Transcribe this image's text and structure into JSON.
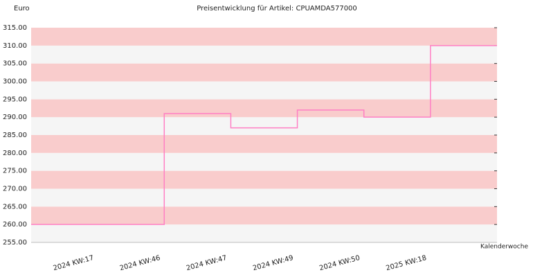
{
  "chart_data": {
    "type": "step",
    "title": "Preisentwicklung für Artikel: CPUAMDA577000",
    "y_label": "Euro",
    "x_label": "Kalenderwoche",
    "categories": [
      "2024 KW:17",
      "2024 KW:46",
      "2024 KW:47",
      "2024 KW:49",
      "2024 KW:50",
      "2025 KW:18"
    ],
    "values": [
      260,
      291,
      287,
      292,
      290,
      310
    ],
    "color": "#ff7fc4",
    "ylim": [
      255,
      315
    ],
    "yticks": [
      {
        "value": 255,
        "label": "255.00"
      },
      {
        "value": 260,
        "label": "260.00"
      },
      {
        "value": 265,
        "label": "265.00"
      },
      {
        "value": 270,
        "label": "270.00"
      },
      {
        "value": 275,
        "label": "275.00"
      },
      {
        "value": 280,
        "label": "280.00"
      },
      {
        "value": 285,
        "label": "285.00"
      },
      {
        "value": 290,
        "label": "290.00"
      },
      {
        "value": 295,
        "label": "295.00"
      },
      {
        "value": 300,
        "label": "300.00"
      },
      {
        "value": 305,
        "label": "305.00"
      },
      {
        "value": 310,
        "label": "310.00"
      },
      {
        "value": 315,
        "label": "315.00"
      }
    ],
    "band_colors": [
      "#f5f5f5",
      "#f9cccc"
    ]
  }
}
